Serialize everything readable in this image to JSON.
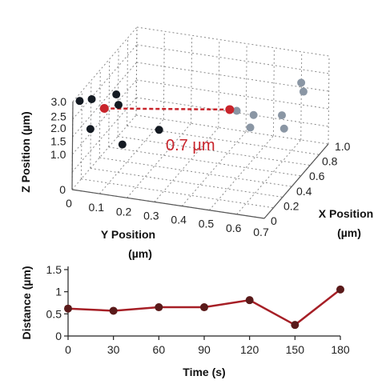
{
  "panel_letter": "",
  "colors": {
    "accent": "#c8242b",
    "dark_point": "#141a22",
    "light_point": "#8a96a4",
    "grid": "#8a8a8a",
    "line": "#a61f26",
    "marker": "#5a1a1a"
  },
  "chart_data": [
    {
      "type": "scatter",
      "title": "",
      "xlabel": "Y Position (µm)",
      "ylabel": "X Position (µm)",
      "zlabel": "Z Position (µm)",
      "xlabel_lines": [
        "Y Position",
        "(µm)"
      ],
      "ylabel_lines": [
        "X Position",
        "(µm)"
      ],
      "xticks": [
        "0",
        "0.1",
        "0.2",
        "0.3",
        "0.4",
        "0.5",
        "0.6",
        "0.7"
      ],
      "yticks": [
        "0",
        "0.2",
        "0.4",
        "0.6",
        "0.8",
        "1.0"
      ],
      "zticks": [
        "0",
        "1.0",
        "1.5",
        "2.0",
        "2.5",
        "3.0"
      ],
      "xlim": [
        0,
        0.7
      ],
      "ylim": [
        0,
        1.0
      ],
      "zlim": [
        0,
        3.0
      ],
      "grid": true,
      "series": [
        {
          "color": "#141a22",
          "points": [
            {
              "x": 0.02,
              "y": 0.02,
              "z": 3.0
            },
            {
              "x": 0.05,
              "y": 0.08,
              "z": 2.95
            },
            {
              "x": 0.06,
              "y": 0.02,
              "z": 2.1
            },
            {
              "x": 0.1,
              "y": 0.25,
              "z": 2.75
            },
            {
              "x": 0.12,
              "y": 0.2,
              "z": 2.55
            },
            {
              "x": 0.17,
              "y": 0.05,
              "z": 1.65
            },
            {
              "x": 0.28,
              "y": 0.15,
              "z": 2.05
            }
          ]
        },
        {
          "color": "#8a96a4",
          "points": [
            {
              "x": 0.55,
              "y": 0.2,
              "z": 2.95
            },
            {
              "x": 0.6,
              "y": 0.25,
              "z": 2.75
            },
            {
              "x": 0.6,
              "y": 0.2,
              "z": 2.45
            },
            {
              "x": 0.68,
              "y": 0.35,
              "z": 2.6
            },
            {
              "x": 0.7,
              "y": 0.3,
              "z": 2.3
            },
            {
              "x": 0.68,
              "y": 0.65,
              "z": 2.95
            },
            {
              "x": 0.7,
              "y": 0.6,
              "z": 2.8
            }
          ]
        }
      ],
      "highlight_points": [
        {
          "x": 0.08,
          "y": 0.15,
          "z": 2.5
        },
        {
          "x": 0.52,
          "y": 0.22,
          "z": 2.9
        }
      ],
      "annotation": "0.7 µm"
    },
    {
      "type": "line",
      "title": "",
      "xlabel": "Time (s)",
      "ylabel": "Distance (µm)",
      "x": [
        0,
        30,
        60,
        90,
        120,
        150,
        180
      ],
      "y": [
        0.62,
        0.57,
        0.65,
        0.65,
        0.81,
        0.25,
        1.05
      ],
      "xlim": [
        0,
        180
      ],
      "ylim": [
        0,
        1.5
      ],
      "xticks": [
        "0",
        "30",
        "60",
        "90",
        "120",
        "150",
        "180"
      ],
      "yticks": [
        "0",
        "0.5",
        "1",
        "1.5"
      ],
      "grid": false
    }
  ]
}
